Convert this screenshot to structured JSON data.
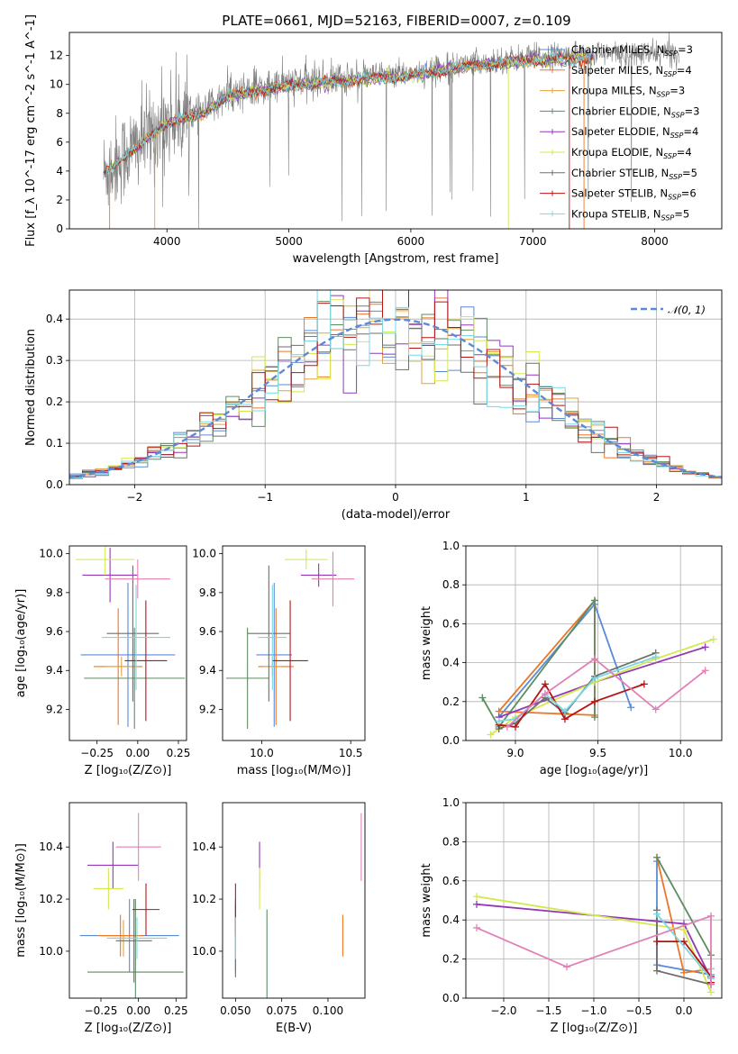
{
  "figure_title": "PLATE=0661, MJD=52163, FIBERID=0007, z=0.109",
  "colors": {
    "Chabrier MILES": "#5b8ad6",
    "Salpeter MILES": "#ed7625",
    "Kroupa MILES": "#e3a23b",
    "Chabrier ELODIE": "#5e8c61",
    "Salpeter ELODIE": "#9337b7",
    "Kroupa ELODIE": "#d4e84d",
    "Chabrier STELIB": "#6e6e6e",
    "Salpeter STELIB": "#b71515",
    "Kroupa STELIB": "#78d8e3",
    "Extra": "#e37fb6",
    "Gauss": "#5b8ad6"
  },
  "legend_models": [
    {
      "name": "Chabrier MILES",
      "nssp": "3"
    },
    {
      "name": "Salpeter MILES",
      "nssp": "4"
    },
    {
      "name": "Kroupa MILES",
      "nssp": "3"
    },
    {
      "name": "Chabrier ELODIE",
      "nssp": "3"
    },
    {
      "name": "Salpeter ELODIE",
      "nssp": "4"
    },
    {
      "name": "Kroupa ELODIE",
      "nssp": "4"
    },
    {
      "name": "Chabrier STELIB",
      "nssp": "5"
    },
    {
      "name": "Salpeter STELIB",
      "nssp": "6"
    },
    {
      "name": "Kroupa STELIB",
      "nssp": "5"
    }
  ],
  "chart_data": [
    {
      "id": "spectrum",
      "type": "line",
      "xlabel": "wavelength [Angstrom, rest frame]",
      "ylabel": "Flux [f_λ 10^-17 erg cm^-2 s^-1 A^-1]",
      "xlim": [
        3200,
        8550
      ],
      "ylim": [
        0,
        13.6
      ],
      "xticks": [
        4000,
        5000,
        6000,
        7000,
        8000
      ],
      "yticks": [
        0,
        2,
        4,
        6,
        8,
        10,
        12
      ],
      "grid": false,
      "legend": "upper right",
      "observed_spectrum_knots": [
        [
          3480,
          3.9
        ],
        [
          3700,
          5.4
        ],
        [
          3900,
          6.8
        ],
        [
          4000,
          7.5
        ],
        [
          4300,
          8.1
        ],
        [
          4500,
          9.4
        ],
        [
          5000,
          10.1
        ],
        [
          5400,
          10.4
        ],
        [
          6000,
          10.8
        ],
        [
          6500,
          11.5
        ],
        [
          7000,
          11.9
        ],
        [
          7500,
          12.1
        ],
        [
          7900,
          12.1
        ],
        [
          8100,
          12.2
        ],
        [
          8200,
          12.1
        ]
      ],
      "model_spectrum_range": [
        3480,
        7500
      ]
    },
    {
      "id": "residuals",
      "type": "histogram",
      "xlabel": "(data-model)/error",
      "ylabel": "Normed distribution",
      "xlim": [
        -2.5,
        2.5
      ],
      "ylim": [
        0,
        0.47
      ],
      "xticks": [
        -2,
        -1,
        0,
        1,
        2
      ],
      "yticks": [
        0.0,
        0.1,
        0.2,
        0.3,
        0.4
      ],
      "grid": true,
      "legend": "upper right",
      "gaussian_label": "𝒩(0, 1)",
      "bin_edges": [
        -2.5,
        2.5
      ],
      "n_bins": 50
    },
    {
      "id": "age_vs_Z",
      "type": "errorbar",
      "xlabel": "Z [log10(Z/Z☉)]",
      "ylabel": "age [log10(age/yr)]",
      "xlim": [
        -0.42,
        0.3
      ],
      "ylim": [
        9.04,
        10.04
      ],
      "xticks": [
        -0.25,
        0.0,
        0.25
      ],
      "yticks": [
        9.2,
        9.4,
        9.6,
        9.8,
        10.0
      ],
      "points": [
        {
          "model": "Chabrier MILES",
          "x": -0.06,
          "y": 9.48,
          "xe": 0.29,
          "ye": 0.37
        },
        {
          "model": "Salpeter MILES",
          "x": -0.12,
          "y": 9.42,
          "xe": 0.15,
          "ye": 0.3
        },
        {
          "model": "Kroupa MILES",
          "x": -0.1,
          "y": 9.42,
          "xe": 0.1,
          "ye": 0.05
        },
        {
          "model": "Chabrier ELODIE",
          "x": -0.02,
          "y": 9.36,
          "xe": 0.31,
          "ye": 0.26
        },
        {
          "model": "Salpeter ELODIE",
          "x": -0.17,
          "y": 9.89,
          "xe": 0.17,
          "ye": 0.14
        },
        {
          "model": "Kroupa ELODIE",
          "x": -0.2,
          "y": 9.97,
          "xe": 0.18,
          "ye": 0.08
        },
        {
          "model": "Chabrier STELIB",
          "x": -0.03,
          "y": 9.59,
          "xe": 0.16,
          "ye": 0.35
        },
        {
          "model": "Salpeter STELIB",
          "x": 0.05,
          "y": 9.45,
          "xe": 0.13,
          "ye": 0.31
        },
        {
          "model": "Kroupa STELIB",
          "x": -0.01,
          "y": 9.57,
          "xe": 0.21,
          "ye": 0.27
        },
        {
          "model": "Extra",
          "x": 0.0,
          "y": 9.87,
          "xe": 0.2,
          "ye": 0.1
        }
      ]
    },
    {
      "id": "age_vs_mass",
      "type": "errorbar",
      "xlabel": "mass [log10(M/M☉)]",
      "ylabel": "",
      "xlim": [
        9.78,
        10.58
      ],
      "ylim": [
        9.04,
        10.04
      ],
      "xticks": [
        10.0,
        10.5
      ],
      "yticks": [
        9.2,
        9.4,
        9.6,
        9.8,
        10.0
      ],
      "points": [
        {
          "model": "Chabrier MILES",
          "x": 10.07,
          "y": 9.48,
          "xe": 0.1,
          "ye": 0.37
        },
        {
          "model": "Salpeter MILES",
          "x": 10.08,
          "y": 9.42,
          "xe": 0.1,
          "ye": 0.3
        },
        {
          "model": "Kroupa MILES",
          "x": 10.06,
          "y": 9.42,
          "xe": 0.05,
          "ye": 0.05
        },
        {
          "model": "Chabrier ELODIE",
          "x": 9.92,
          "y": 9.36,
          "xe": 0.12,
          "ye": 0.26
        },
        {
          "model": "Salpeter ELODIE",
          "x": 10.32,
          "y": 9.89,
          "xe": 0.1,
          "ye": 0.06
        },
        {
          "model": "Kroupa ELODIE",
          "x": 10.25,
          "y": 9.97,
          "xe": 0.12,
          "ye": 0.05
        },
        {
          "model": "Chabrier STELIB",
          "x": 10.04,
          "y": 9.59,
          "xe": 0.12,
          "ye": 0.35
        },
        {
          "model": "Salpeter STELIB",
          "x": 10.16,
          "y": 9.45,
          "xe": 0.1,
          "ye": 0.31
        },
        {
          "model": "Kroupa STELIB",
          "x": 10.06,
          "y": 9.57,
          "xe": 0.08,
          "ye": 0.27
        },
        {
          "model": "Extra",
          "x": 10.4,
          "y": 9.87,
          "xe": 0.12,
          "ye": 0.14
        }
      ]
    },
    {
      "id": "weight_vs_age",
      "type": "line",
      "xlabel": "age [log10(age/yr)]",
      "ylabel": "mass weight",
      "xlim": [
        8.7,
        10.25
      ],
      "ylim": [
        0.0,
        1.0
      ],
      "xticks": [
        9.0,
        9.5,
        10.0
      ],
      "yticks": [
        0.0,
        0.2,
        0.4,
        0.6,
        0.8,
        1.0
      ],
      "grid": true,
      "series": [
        {
          "model": "Chabrier MILES",
          "x": [
            8.9,
            9.48,
            9.7
          ],
          "y": [
            0.12,
            0.7,
            0.17
          ]
        },
        {
          "model": "Salpeter MILES",
          "x": [
            9.48,
            8.9,
            9.48,
            9.48
          ],
          "y": [
            0.13,
            0.15,
            0.72,
            0.13
          ]
        },
        {
          "model": "Chabrier ELODIE",
          "x": [
            8.8,
            8.9,
            9.48,
            9.48
          ],
          "y": [
            0.22,
            0.07,
            0.72,
            0.12
          ]
        },
        {
          "model": "Salpeter ELODIE",
          "x": [
            8.9,
            9.48,
            10.15
          ],
          "y": [
            0.12,
            0.3,
            0.48
          ]
        },
        {
          "model": "Kroupa ELODIE",
          "x": [
            8.85,
            9.0,
            9.48,
            9.85,
            10.2
          ],
          "y": [
            0.03,
            0.12,
            0.3,
            0.42,
            0.52
          ]
        },
        {
          "model": "Chabrier STELIB",
          "x": [
            8.9,
            9.0,
            9.18,
            9.3,
            9.48,
            9.85
          ],
          "y": [
            0.06,
            0.09,
            0.22,
            0.14,
            0.33,
            0.45
          ]
        },
        {
          "model": "Salpeter STELIB",
          "x": [
            8.9,
            9.0,
            9.18,
            9.3,
            9.48,
            9.78
          ],
          "y": [
            0.08,
            0.07,
            0.29,
            0.11,
            0.2,
            0.29
          ]
        },
        {
          "model": "Kroupa STELIB",
          "x": [
            8.9,
            9.0,
            9.18,
            9.3,
            9.48,
            9.85
          ],
          "y": [
            0.1,
            0.11,
            0.24,
            0.15,
            0.32,
            0.43
          ]
        },
        {
          "model": "Extra",
          "x": [
            8.95,
            9.18,
            9.48,
            9.85,
            10.15
          ],
          "y": [
            0.07,
            0.24,
            0.42,
            0.16,
            0.36
          ]
        }
      ]
    },
    {
      "id": "mass_vs_Z",
      "type": "errorbar",
      "xlabel": "Z [log10(Z/Z☉)]",
      "ylabel": "mass [log10(M/M☉)]",
      "xlim": [
        -0.46,
        0.32
      ],
      "ylim": [
        9.82,
        10.57
      ],
      "xticks": [
        -0.25,
        0.0,
        0.25
      ],
      "yticks": [
        10.0,
        10.2,
        10.4
      ],
      "points": [
        {
          "model": "Chabrier MILES",
          "x": -0.06,
          "y": 10.06,
          "xe": 0.33,
          "ye": 0.14
        },
        {
          "model": "Salpeter MILES",
          "x": -0.12,
          "y": 10.06,
          "xe": 0.15,
          "ye": 0.08
        },
        {
          "model": "Kroupa MILES",
          "x": -0.1,
          "y": 10.05,
          "xe": 0.08,
          "ye": 0.07
        },
        {
          "model": "Chabrier ELODIE",
          "x": -0.02,
          "y": 9.92,
          "xe": 0.32,
          "ye": 0.28
        },
        {
          "model": "Salpeter ELODIE",
          "x": -0.17,
          "y": 10.33,
          "xe": 0.17,
          "ye": 0.09
        },
        {
          "model": "Kroupa ELODIE",
          "x": -0.2,
          "y": 10.24,
          "xe": 0.1,
          "ye": 0.08
        },
        {
          "model": "Chabrier STELIB",
          "x": -0.03,
          "y": 10.04,
          "xe": 0.12,
          "ye": 0.16
        },
        {
          "model": "Salpeter STELIB",
          "x": 0.05,
          "y": 10.16,
          "xe": 0.09,
          "ye": 0.1
        },
        {
          "model": "Kroupa STELIB",
          "x": -0.01,
          "y": 10.05,
          "xe": 0.2,
          "ye": 0.08
        },
        {
          "model": "Extra",
          "x": 0.0,
          "y": 10.4,
          "xe": 0.15,
          "ye": 0.13
        }
      ]
    },
    {
      "id": "mass_vs_ebv",
      "type": "errorbar",
      "xlabel": "E(B-V)",
      "ylabel": "",
      "xlim": [
        0.043,
        0.12
      ],
      "ylim": [
        9.82,
        10.57
      ],
      "xticks": [
        0.05,
        0.075,
        0.1
      ],
      "yticks": [
        10.0,
        10.2,
        10.4
      ],
      "points": [
        {
          "model": "Chabrier MILES",
          "x": 0.05,
          "y": 10.06,
          "xe": 0,
          "ye": 0.14
        },
        {
          "model": "Salpeter MILES",
          "x": 0.108,
          "y": 10.06,
          "xe": 0,
          "ye": 0.08
        },
        {
          "model": "Chabrier ELODIE",
          "x": 0.067,
          "y": 9.92,
          "xe": 0,
          "ye": 0.24
        },
        {
          "model": "Salpeter ELODIE",
          "x": 0.063,
          "y": 10.33,
          "xe": 0,
          "ye": 0.09
        },
        {
          "model": "Kroupa ELODIE",
          "x": 0.063,
          "y": 10.24,
          "xe": 0,
          "ye": 0.08
        },
        {
          "model": "Chabrier STELIB",
          "x": 0.05,
          "y": 10.04,
          "xe": 0,
          "ye": 0.14
        },
        {
          "model": "Salpeter STELIB",
          "x": 0.05,
          "y": 10.16,
          "xe": 0,
          "ye": 0.1
        },
        {
          "model": "Kroupa STELIB",
          "x": 0.05,
          "y": 10.05,
          "xe": 0,
          "ye": 0.08
        },
        {
          "model": "Extra",
          "x": 0.118,
          "y": 10.4,
          "xe": 0,
          "ye": 0.13
        }
      ]
    },
    {
      "id": "weight_vs_Z",
      "type": "line",
      "xlabel": "Z [log10(Z/Z☉)]",
      "ylabel": "mass weight",
      "xlim": [
        -2.42,
        0.42
      ],
      "ylim": [
        0.0,
        1.0
      ],
      "xticks": [
        -2.0,
        -1.5,
        -1.0,
        -0.5,
        0.0
      ],
      "yticks": [
        0.0,
        0.2,
        0.4,
        0.6,
        0.8,
        1.0
      ],
      "grid": true,
      "series": [
        {
          "model": "Chabrier MILES",
          "x": [
            -0.3,
            -0.3,
            0.3
          ],
          "y": [
            0.7,
            0.17,
            0.12
          ]
        },
        {
          "model": "Salpeter MILES",
          "x": [
            -0.3,
            0.0,
            0.3
          ],
          "y": [
            0.72,
            0.13,
            0.15
          ]
        },
        {
          "model": "Chabrier ELODIE",
          "x": [
            -0.3,
            0.3,
            0.3
          ],
          "y": [
            0.72,
            0.22,
            0.07
          ]
        },
        {
          "model": "Salpeter ELODIE",
          "x": [
            -2.3,
            0.0,
            0.3
          ],
          "y": [
            0.48,
            0.38,
            0.1
          ]
        },
        {
          "model": "Kroupa ELODIE",
          "x": [
            -2.3,
            0.0,
            0.3
          ],
          "y": [
            0.52,
            0.35,
            0.03
          ]
        },
        {
          "model": "Chabrier STELIB",
          "x": [
            -0.3,
            -0.3,
            0.3
          ],
          "y": [
            0.45,
            0.14,
            0.07
          ]
        },
        {
          "model": "Salpeter STELIB",
          "x": [
            -0.3,
            0.0,
            0.3,
            0.3
          ],
          "y": [
            0.29,
            0.29,
            0.11,
            0.08
          ]
        },
        {
          "model": "Kroupa STELIB",
          "x": [
            -0.3,
            0.3,
            0.3
          ],
          "y": [
            0.43,
            0.1,
            0.15
          ]
        },
        {
          "model": "Extra",
          "x": [
            -2.3,
            -1.3,
            0.3,
            0.3
          ],
          "y": [
            0.36,
            0.16,
            0.42,
            0.07
          ]
        }
      ]
    }
  ]
}
